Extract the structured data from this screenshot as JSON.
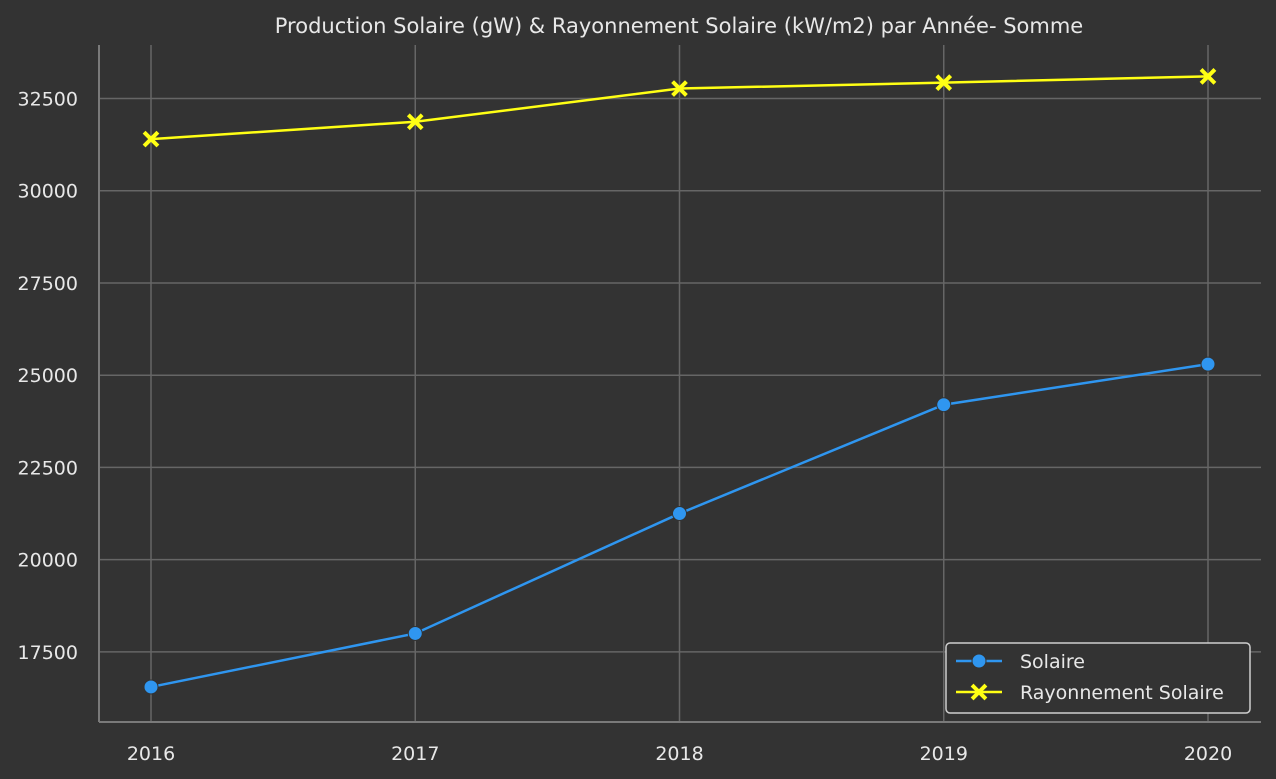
{
  "chart_data": {
    "type": "line",
    "title": "Production Solaire (gW) & Rayonnement Solaire (kW/m2) par Année- Somme",
    "xlabel": "",
    "ylabel": "",
    "x": [
      "2016",
      "2017",
      "2018",
      "2019",
      "2020"
    ],
    "yticks": [
      "17500",
      "20000",
      "22500",
      "25000",
      "27500",
      "30000",
      "32500"
    ],
    "ylim": [
      15600,
      33950
    ],
    "grid": true,
    "legend_position": "bottom-right",
    "series": [
      {
        "name": "Solaire",
        "values": [
          16550,
          18000,
          21250,
          24200,
          25300
        ],
        "color": "#2f96f0",
        "marker": "circle"
      },
      {
        "name": "Rayonnement Solaire",
        "values": [
          31400,
          31870,
          32770,
          32930,
          33100
        ],
        "color": "#ffff14",
        "marker": "x"
      }
    ],
    "colors": {
      "background": "#333333",
      "grid": "#666666",
      "axis": "#7a7a7a",
      "text": "#e8e8e8"
    }
  }
}
